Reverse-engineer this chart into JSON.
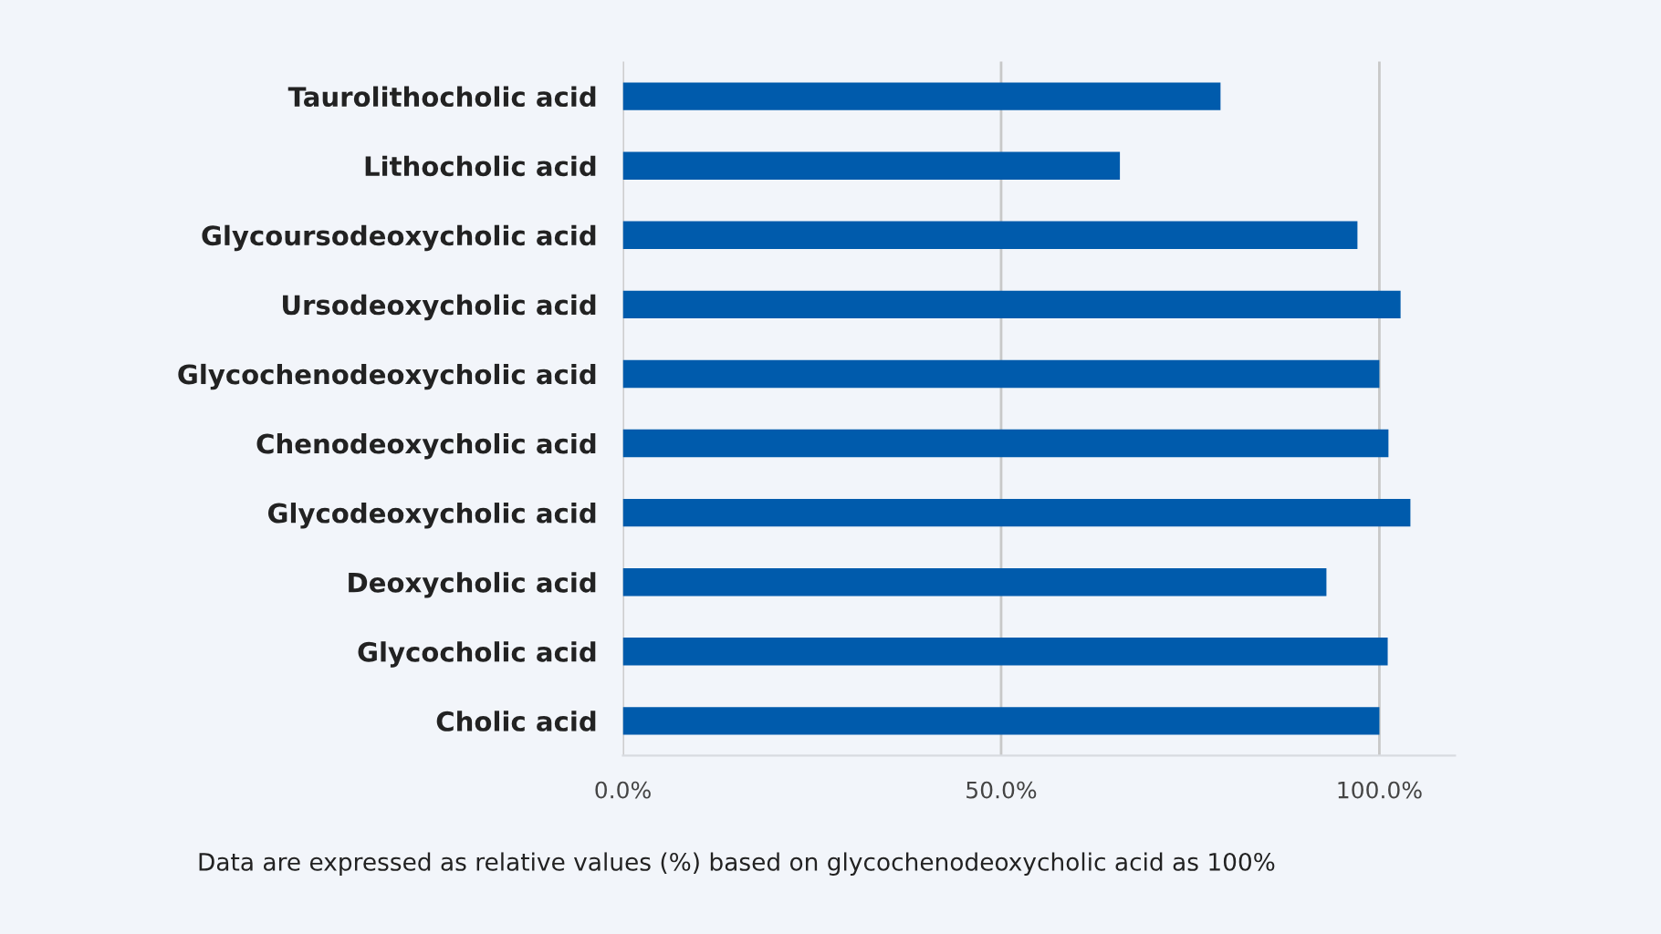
{
  "chart_data": {
    "type": "bar",
    "orientation": "horizontal",
    "categories": [
      "Taurolithocholic acid",
      "Lithocholic acid",
      "Glycoursodeoxycholic acid",
      "Ursodeoxycholic acid",
      "Glycochenodeoxycholic acid",
      "Chenodeoxycholic acid",
      "Glycodeoxycholic acid",
      "Deoxycholic acid",
      "Glycocholic acid",
      "Cholic acid"
    ],
    "values": [
      79.0,
      65.7,
      97.1,
      102.8,
      100,
      101.2,
      104.1,
      93.0,
      101.1,
      100
    ],
    "color": "#005bac",
    "xlim": [
      0,
      110
    ],
    "xticks": [
      {
        "value": 0,
        "label": "0.0%"
      },
      {
        "value": 50,
        "label": "50.0%"
      },
      {
        "value": 100,
        "label": "100.0%"
      }
    ],
    "grid": "x",
    "legend": false,
    "annotations": [
      "Data are expressed as relative values (%) based on glycochenodeoxycholic acid as 100%"
    ]
  }
}
